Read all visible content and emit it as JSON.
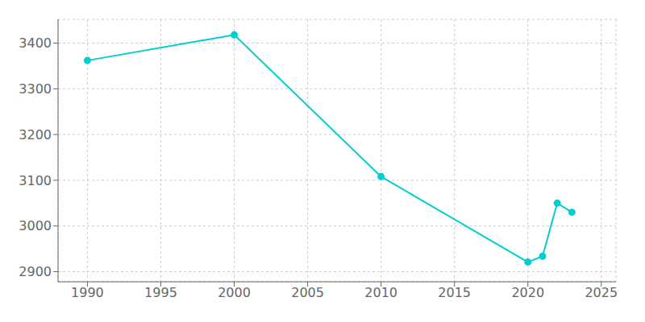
{
  "chart_data": {
    "type": "line",
    "x": [
      1990,
      2000,
      2010,
      2020,
      2021,
      2022,
      2023
    ],
    "values": [
      3362,
      3418,
      3108,
      2921,
      2934,
      3050,
      3030
    ],
    "color": "#00CED1",
    "marker": "circle",
    "xlim": [
      1988,
      2026
    ],
    "ylim": [
      2878,
      3452
    ],
    "xticks": [
      1990,
      1995,
      2000,
      2005,
      2010,
      2015,
      2020,
      2025
    ],
    "yticks": [
      2900,
      3000,
      3100,
      3200,
      3300,
      3400
    ],
    "grid": true
  }
}
